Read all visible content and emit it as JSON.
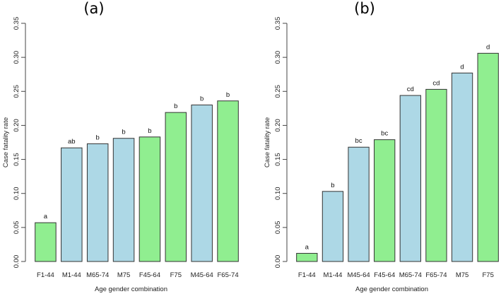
{
  "colors": {
    "female": "#90EE90",
    "male": "#ADD8E6",
    "stroke": "#333333"
  },
  "chart_data": [
    {
      "type": "bar",
      "title": "(a)",
      "xlabel": "Age gender combination",
      "ylabel": "Case fatality rate",
      "ylim": [
        0,
        0.35
      ],
      "yticks": [
        "0.00",
        "0.05",
        "0.10",
        "0.15",
        "0.20",
        "0.25",
        "0.30",
        "0.35"
      ],
      "categories": [
        "F1-44",
        "M1-44",
        "M65-74",
        "M75",
        "F45-64",
        "F75",
        "M45-64",
        "F65-74"
      ],
      "values": [
        0.057,
        0.167,
        0.173,
        0.181,
        0.183,
        0.219,
        0.23,
        0.236
      ],
      "groups": [
        "F",
        "M",
        "M",
        "M",
        "F",
        "F",
        "M",
        "F"
      ],
      "letters": [
        "a",
        "ab",
        "b",
        "b",
        "b",
        "b",
        "b",
        "b"
      ]
    },
    {
      "type": "bar",
      "title": "(b)",
      "xlabel": "Age gender combination",
      "ylabel": "Case fatality rate",
      "ylim": [
        0,
        0.35
      ],
      "yticks": [
        "0.00",
        "0.05",
        "0.10",
        "0.15",
        "0.20",
        "0.25",
        "0.30",
        "0.35"
      ],
      "categories": [
        "F1-44",
        "M1-44",
        "M45-64",
        "F45-64",
        "M65-74",
        "F65-74",
        "M75",
        "F75"
      ],
      "values": [
        0.012,
        0.103,
        0.168,
        0.179,
        0.244,
        0.253,
        0.277,
        0.306
      ],
      "groups": [
        "F",
        "M",
        "M",
        "F",
        "M",
        "F",
        "M",
        "F"
      ],
      "letters": [
        "a",
        "b",
        "bc",
        "bc",
        "cd",
        "cd",
        "d",
        "d"
      ]
    }
  ]
}
